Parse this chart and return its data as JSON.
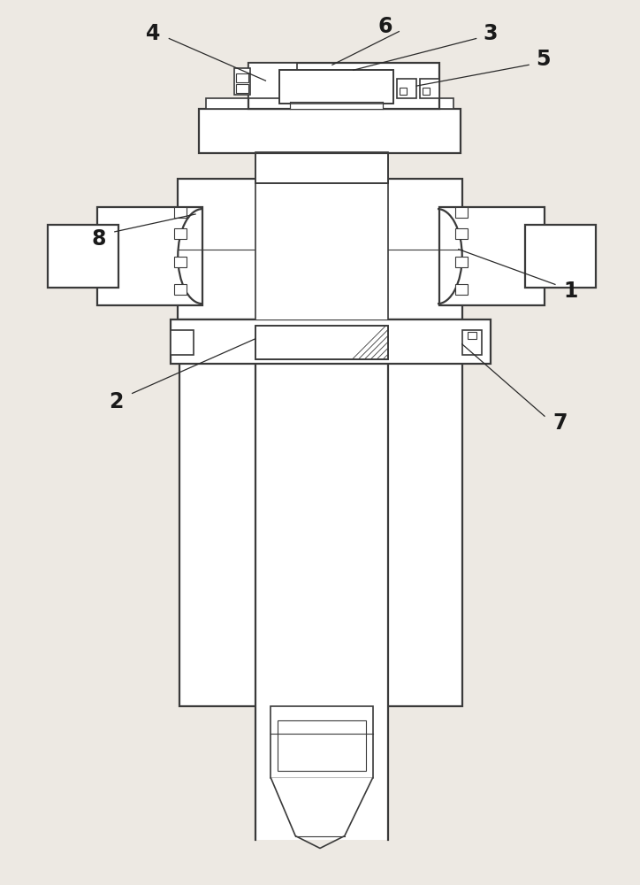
{
  "bg_color": "#ede9e3",
  "line_color": "#3a3a3a",
  "label_color": "#1a1a1a",
  "fig_width": 7.24,
  "fig_height": 10.0,
  "dpi": 100
}
